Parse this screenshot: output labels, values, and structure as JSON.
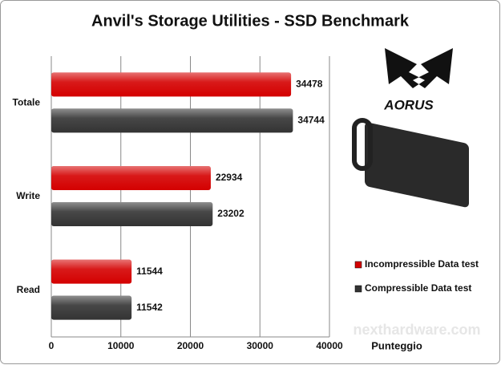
{
  "chart_data": {
    "type": "hbar",
    "title": "Anvil's Storage Utilities - SSD Benchmark",
    "categories": [
      "Totale",
      "Write",
      "Read"
    ],
    "series": [
      {
        "name": "Incompressible Data test",
        "color": "#d40000",
        "values": [
          34478,
          22934,
          11544
        ]
      },
      {
        "name": "Compressible Data test",
        "color": "#333333",
        "values": [
          34744,
          23202,
          11542
        ]
      }
    ],
    "xlim": [
      0,
      40000
    ],
    "xticks": [
      0,
      10000,
      20000,
      30000,
      40000
    ],
    "x_label": "Punteggio",
    "grid": true,
    "logo_text": "AORUS",
    "watermark": "nexthardware.com"
  }
}
